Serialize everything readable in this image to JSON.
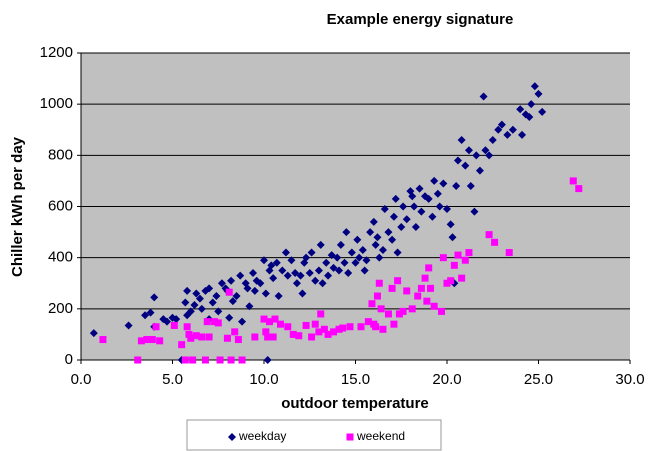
{
  "chart_data": {
    "type": "scatter",
    "title": "Example energy signature",
    "x_label": "outdoor temperature",
    "y_label": "Chiller kWh per day",
    "xlim": [
      0,
      30
    ],
    "ylim": [
      0,
      1200
    ],
    "xticks": [
      {
        "value": 0,
        "label": "0.0"
      },
      {
        "value": 5,
        "label": "5.0"
      },
      {
        "value": 10,
        "label": "10.0"
      },
      {
        "value": 15,
        "label": "15.0"
      },
      {
        "value": 20,
        "label": "20.0"
      },
      {
        "value": 25,
        "label": "25.0"
      },
      {
        "value": 30,
        "label": "30.0"
      }
    ],
    "yticks": [
      0,
      200,
      400,
      600,
      800,
      1000,
      1200
    ],
    "grid": true,
    "legend": "bottom",
    "background": "#c0c0c0",
    "series": [
      {
        "name": "weekday",
        "color": "#000080",
        "marker": "diamond",
        "x": [
          0.7,
          2.6,
          3.5,
          3.8,
          4.0,
          4.0,
          4.5,
          4.7,
          5.0,
          5.2,
          5.5,
          5.7,
          5.8,
          5.8,
          6.0,
          6.2,
          6.3,
          6.5,
          6.6,
          6.8,
          7.0,
          7.0,
          7.2,
          7.4,
          7.5,
          7.7,
          7.9,
          8.0,
          8.1,
          8.2,
          8.3,
          8.5,
          8.7,
          8.8,
          9.0,
          9.1,
          9.2,
          9.4,
          9.5,
          9.6,
          9.8,
          10.0,
          10.1,
          10.2,
          10.3,
          10.4,
          10.5,
          10.7,
          10.8,
          11.0,
          11.2,
          11.3,
          11.5,
          11.7,
          11.8,
          12.0,
          12.1,
          12.2,
          12.3,
          12.5,
          12.6,
          12.8,
          13.0,
          13.1,
          13.2,
          13.4,
          13.5,
          13.7,
          13.8,
          14.0,
          14.1,
          14.2,
          14.4,
          14.5,
          14.6,
          14.8,
          15.0,
          15.1,
          15.2,
          15.4,
          15.5,
          15.6,
          15.8,
          16.0,
          16.1,
          16.2,
          16.3,
          16.5,
          16.6,
          16.8,
          17.0,
          17.1,
          17.2,
          17.3,
          17.5,
          17.6,
          17.8,
          18.0,
          18.1,
          18.2,
          18.3,
          18.5,
          18.6,
          18.8,
          19.0,
          19.2,
          19.3,
          19.5,
          19.6,
          19.8,
          20.0,
          20.2,
          20.3,
          20.4,
          20.5,
          20.6,
          20.8,
          21.0,
          21.2,
          21.3,
          21.5,
          21.6,
          21.8,
          22.0,
          22.1,
          22.3,
          22.5,
          22.8,
          23.0,
          23.3,
          23.6,
          24.0,
          24.1,
          24.3,
          24.5,
          24.6,
          24.8,
          25.0,
          25.2
        ],
        "values": [
          105,
          135,
          175,
          185,
          245,
          130,
          160,
          150,
          165,
          160,
          0,
          225,
          175,
          270,
          190,
          215,
          260,
          240,
          200,
          270,
          280,
          160,
          225,
          250,
          190,
          300,
          280,
          270,
          165,
          310,
          230,
          250,
          330,
          150,
          300,
          280,
          210,
          340,
          270,
          310,
          300,
          390,
          260,
          0,
          350,
          370,
          320,
          380,
          250,
          350,
          420,
          330,
          390,
          340,
          300,
          330,
          260,
          380,
          400,
          340,
          420,
          310,
          350,
          450,
          300,
          380,
          330,
          410,
          360,
          400,
          350,
          450,
          380,
          500,
          340,
          420,
          380,
          470,
          400,
          430,
          350,
          390,
          500,
          540,
          450,
          480,
          400,
          430,
          590,
          500,
          470,
          560,
          630,
          420,
          520,
          600,
          550,
          660,
          640,
          600,
          520,
          670,
          580,
          640,
          630,
          560,
          700,
          650,
          600,
          690,
          590,
          530,
          480,
          300,
          680,
          780,
          860,
          760,
          820,
          680,
          580,
          800,
          740,
          1030,
          820,
          800,
          860,
          900,
          920,
          880,
          900,
          980,
          880,
          960,
          950,
          1000,
          1070,
          1040,
          970
        ]
      },
      {
        "name": "weekend",
        "color": "#ff00ff",
        "marker": "square",
        "x": [
          1.2,
          3.1,
          3.3,
          3.6,
          3.9,
          4.1,
          4.3,
          5.1,
          5.5,
          5.7,
          5.8,
          5.9,
          6.0,
          6.1,
          6.3,
          6.6,
          6.8,
          6.9,
          7.0,
          7.3,
          7.5,
          7.6,
          8.0,
          8.1,
          8.2,
          8.4,
          8.6,
          8.8,
          9.5,
          10.0,
          10.1,
          10.2,
          10.3,
          10.5,
          10.6,
          10.9,
          11.3,
          11.6,
          11.9,
          12.3,
          12.6,
          12.8,
          13.0,
          13.1,
          13.3,
          13.5,
          13.8,
          14.1,
          14.3,
          14.7,
          15.3,
          15.7,
          15.9,
          16.0,
          16.1,
          16.2,
          16.3,
          16.4,
          16.5,
          16.8,
          17.0,
          17.1,
          17.3,
          17.4,
          17.6,
          17.8,
          18.1,
          18.4,
          18.6,
          18.8,
          18.9,
          19.0,
          19.1,
          19.3,
          19.7,
          19.8,
          20.0,
          20.2,
          20.4,
          20.6,
          20.8,
          21.0,
          21.2,
          22.3,
          22.6,
          23.4,
          26.9,
          27.2
        ],
        "values": [
          80,
          0,
          75,
          80,
          80,
          130,
          75,
          135,
          60,
          0,
          130,
          100,
          85,
          0,
          95,
          90,
          0,
          150,
          90,
          150,
          145,
          0,
          85,
          265,
          0,
          110,
          80,
          0,
          90,
          160,
          110,
          90,
          150,
          90,
          160,
          140,
          130,
          100,
          95,
          135,
          90,
          140,
          110,
          180,
          120,
          100,
          110,
          120,
          125,
          130,
          130,
          150,
          220,
          140,
          130,
          250,
          300,
          200,
          120,
          180,
          280,
          140,
          310,
          180,
          190,
          270,
          200,
          250,
          280,
          320,
          230,
          360,
          280,
          210,
          190,
          400,
          300,
          310,
          370,
          410,
          320,
          390,
          420,
          490,
          460,
          420,
          700,
          670
        ]
      }
    ]
  }
}
